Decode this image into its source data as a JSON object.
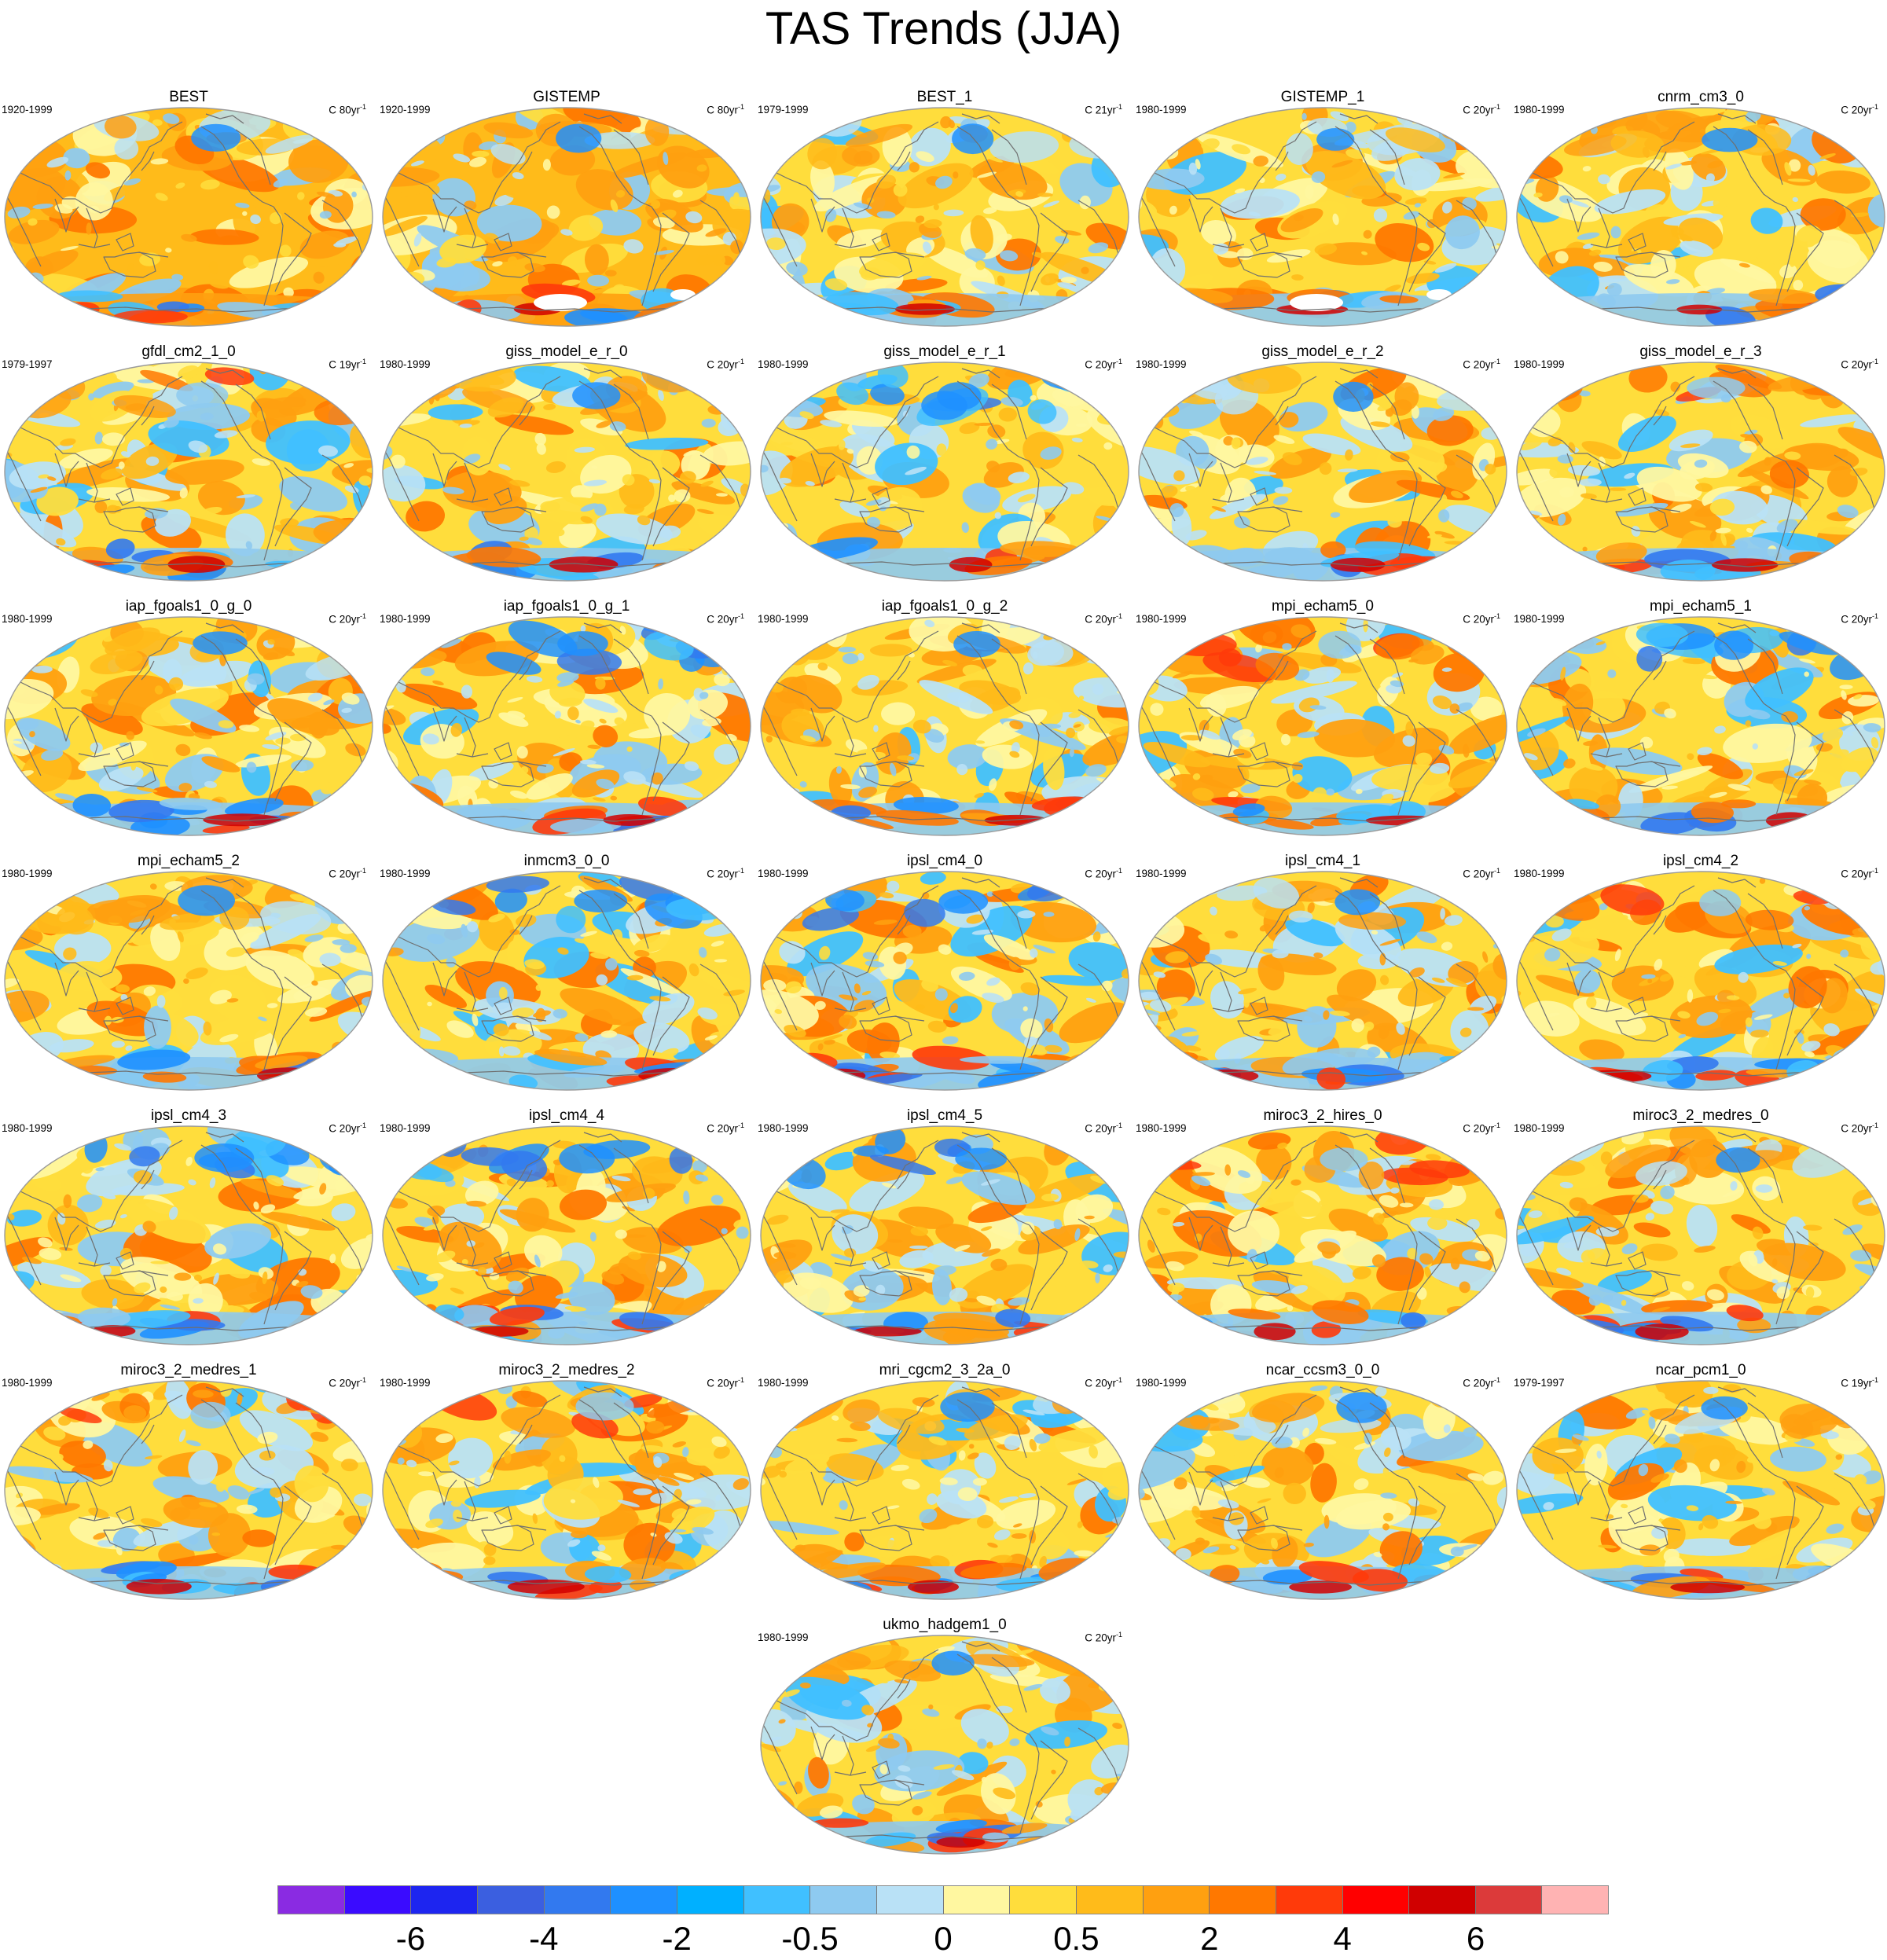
{
  "title": "TAS Trends (JJA)",
  "unit_prefix": "C",
  "unit_suffix": "-1",
  "panels": [
    {
      "name": "BEST",
      "period": "1920-1999",
      "unit": "80yr",
      "top_mode": "n",
      "variant": "obs80a"
    },
    {
      "name": "GISTEMP",
      "period": "1920-1999",
      "unit": "80yr",
      "top_mode": "n",
      "variant": "obs80b"
    },
    {
      "name": "BEST_1",
      "period": "1979-1999",
      "unit": "21yr",
      "top_mode": "n",
      "variant": "obs"
    },
    {
      "name": "GISTEMP_1",
      "period": "1980-1999",
      "unit": "20yr",
      "top_mode": "n",
      "variant": "obsg"
    },
    {
      "name": "cnrm_cm3_0",
      "period": "1980-1999",
      "unit": "20yr",
      "top_mode": "n",
      "variant": "model"
    },
    {
      "name": "gfdl_cm2_1_0",
      "period": "1979-1997",
      "unit": "19yr",
      "top_mode": "warm",
      "variant": "model"
    },
    {
      "name": "giss_model_e_r_0",
      "period": "1980-1999",
      "unit": "20yr",
      "top_mode": "n",
      "variant": "model"
    },
    {
      "name": "giss_model_e_r_1",
      "period": "1980-1999",
      "unit": "20yr",
      "top_mode": "cool",
      "variant": "model"
    },
    {
      "name": "giss_model_e_r_2",
      "period": "1980-1999",
      "unit": "20yr",
      "top_mode": "n",
      "variant": "model"
    },
    {
      "name": "giss_model_e_r_3",
      "period": "1980-1999",
      "unit": "20yr",
      "top_mode": "warm",
      "variant": "model"
    },
    {
      "name": "iap_fgoals1_0_g_0",
      "period": "1980-1999",
      "unit": "20yr",
      "top_mode": "n",
      "variant": "model"
    },
    {
      "name": "iap_fgoals1_0_g_1",
      "period": "1980-1999",
      "unit": "20yr",
      "top_mode": "cool",
      "variant": "model"
    },
    {
      "name": "iap_fgoals1_0_g_2",
      "period": "1980-1999",
      "unit": "20yr",
      "top_mode": "n",
      "variant": "model"
    },
    {
      "name": "mpi_echam5_0",
      "period": "1980-1999",
      "unit": "20yr",
      "top_mode": "warm",
      "variant": "model"
    },
    {
      "name": "mpi_echam5_1",
      "period": "1980-1999",
      "unit": "20yr",
      "top_mode": "cool",
      "variant": "model"
    },
    {
      "name": "mpi_echam5_2",
      "period": "1980-1999",
      "unit": "20yr",
      "top_mode": "n",
      "variant": "model"
    },
    {
      "name": "inmcm3_0_0",
      "period": "1980-1999",
      "unit": "20yr",
      "top_mode": "cool",
      "variant": "model"
    },
    {
      "name": "ipsl_cm4_0",
      "period": "1980-1999",
      "unit": "20yr",
      "top_mode": "cool",
      "variant": "model"
    },
    {
      "name": "ipsl_cm4_1",
      "period": "1980-1999",
      "unit": "20yr",
      "top_mode": "n",
      "variant": "model"
    },
    {
      "name": "ipsl_cm4_2",
      "period": "1980-1999",
      "unit": "20yr",
      "top_mode": "warm",
      "variant": "model"
    },
    {
      "name": "ipsl_cm4_3",
      "period": "1980-1999",
      "unit": "20yr",
      "top_mode": "cool",
      "variant": "model"
    },
    {
      "name": "ipsl_cm4_4",
      "period": "1980-1999",
      "unit": "20yr",
      "top_mode": "cool",
      "variant": "model"
    },
    {
      "name": "ipsl_cm4_5",
      "period": "1980-1999",
      "unit": "20yr",
      "top_mode": "cool",
      "variant": "model"
    },
    {
      "name": "miroc3_2_hires_0",
      "period": "1980-1999",
      "unit": "20yr",
      "top_mode": "warm",
      "variant": "model"
    },
    {
      "name": "miroc3_2_medres_0",
      "period": "1980-1999",
      "unit": "20yr",
      "top_mode": "n",
      "variant": "model"
    },
    {
      "name": "miroc3_2_medres_1",
      "period": "1980-1999",
      "unit": "20yr",
      "top_mode": "warm",
      "variant": "model"
    },
    {
      "name": "miroc3_2_medres_2",
      "period": "1980-1999",
      "unit": "20yr",
      "top_mode": "warm",
      "variant": "model"
    },
    {
      "name": "mri_cgcm2_3_2a_0",
      "period": "1980-1999",
      "unit": "20yr",
      "top_mode": "n",
      "variant": "model"
    },
    {
      "name": "ncar_ccsm3_0_0",
      "period": "1980-1999",
      "unit": "20yr",
      "top_mode": "n",
      "variant": "model"
    },
    {
      "name": "ncar_pcm1_0",
      "period": "1979-1997",
      "unit": "19yr",
      "top_mode": "n",
      "variant": "model"
    },
    {
      "name": "ukmo_hadgem1_0",
      "period": "1980-1999",
      "unit": "20yr",
      "top_mode": "n",
      "variant": "model"
    }
  ],
  "colorbar": {
    "colors": [
      "#8a2be2",
      "#3a0bff",
      "#1d25f0",
      "#3b5fe0",
      "#3279ef",
      "#1e90ff",
      "#00b0ff",
      "#40c0ff",
      "#8ecaf0",
      "#b9e1f6",
      "#fff7a0",
      "#ffdd3c",
      "#ffbb1a",
      "#ffa010",
      "#ff7800",
      "#ff3a0a",
      "#ff0000",
      "#d00000",
      "#dc3a3a",
      "#ffb3b3"
    ],
    "labels": [
      {
        "value": "-6",
        "boundary": 2
      },
      {
        "value": "-4",
        "boundary": 4
      },
      {
        "value": "-2",
        "boundary": 6
      },
      {
        "value": "-0.5",
        "boundary": 8
      },
      {
        "value": "0",
        "boundary": 10
      },
      {
        "value": "0.5",
        "boundary": 12
      },
      {
        "value": "2",
        "boundary": 14
      },
      {
        "value": "4",
        "boundary": 16
      },
      {
        "value": "6",
        "boundary": 18
      }
    ]
  }
}
